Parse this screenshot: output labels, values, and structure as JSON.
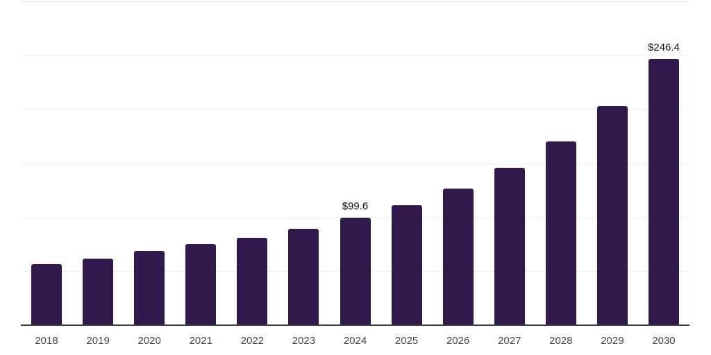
{
  "chart_data": {
    "type": "bar",
    "title": "",
    "xlabel": "",
    "ylabel": "",
    "categories": [
      "2018",
      "2019",
      "2020",
      "2021",
      "2022",
      "2023",
      "2024",
      "2025",
      "2026",
      "2027",
      "2028",
      "2029",
      "2030"
    ],
    "values": [
      56.5,
      61.7,
      69.0,
      75.0,
      81.2,
      89.3,
      99.6,
      111.2,
      126.8,
      145.6,
      170.2,
      203.2,
      246.4
    ],
    "value_labels": {
      "2024": "$99.6",
      "2030": "$246.4"
    },
    "ylim": [
      0,
      300
    ],
    "gridline_step": 50,
    "grid": true,
    "legend": "none",
    "bar_color": "#31194d",
    "axis_line_color": "#3d3d3d",
    "gridline_color": "#efeff2",
    "top_gridline_color": "#e2e2e6",
    "tick_label_color": "#474747",
    "value_label_color": "#111111"
  }
}
